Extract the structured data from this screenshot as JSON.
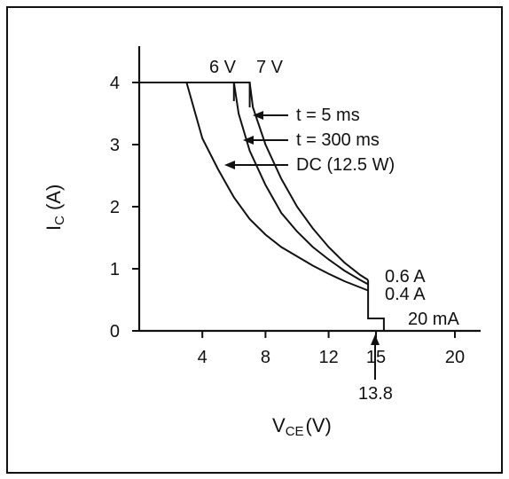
{
  "chart_data": {
    "type": "line",
    "title": "",
    "xlabel": {
      "main": "V",
      "sub": "CE",
      "unit": "(V)"
    },
    "ylabel": {
      "main": "I",
      "sub": "C",
      "unit": "(A)"
    },
    "xlim": [
      0,
      22
    ],
    "ylim": [
      0,
      4.5
    ],
    "x_ticks": [
      4,
      8,
      12,
      15,
      20
    ],
    "y_ticks": [
      0,
      1,
      2,
      3,
      4
    ],
    "grid": false,
    "series": [
      {
        "name": "DC (12.5 W)",
        "x": [
          3.0,
          4.0,
          5.0,
          6.0,
          7.0,
          8.0,
          9.0,
          10.0,
          11.0,
          12.0,
          13.0,
          14.0,
          14.5
        ],
        "y": [
          4.0,
          3.1,
          2.6,
          2.15,
          1.8,
          1.55,
          1.35,
          1.2,
          1.05,
          0.92,
          0.8,
          0.7,
          0.65
        ]
      },
      {
        "name": "t = 300 ms",
        "x": [
          6.0,
          6.3,
          7.0,
          8.0,
          9.0,
          10.0,
          11.0,
          12.0,
          13.0,
          14.0,
          14.5
        ],
        "y": [
          4.0,
          3.5,
          2.9,
          2.35,
          1.9,
          1.6,
          1.35,
          1.15,
          0.97,
          0.82,
          0.75
        ]
      },
      {
        "name": "t = 5 ms",
        "x": [
          7.0,
          7.2,
          8.0,
          9.0,
          10.0,
          11.0,
          12.0,
          13.0,
          14.0,
          14.5
        ],
        "y": [
          4.0,
          3.6,
          3.0,
          2.45,
          2.0,
          1.65,
          1.35,
          1.1,
          0.9,
          0.82
        ]
      }
    ],
    "boundary": {
      "x": [
        0,
        7.0,
        7.0
      ],
      "y": [
        4.0,
        4.0,
        3.6
      ]
    },
    "steps": {
      "x": [
        14.5,
        14.5,
        14.5,
        15.5,
        15.5
      ],
      "y": [
        0.82,
        0.2,
        0.2,
        0.2,
        0.0
      ]
    },
    "annotations": {
      "top_left_label": "6 V",
      "top_right_label": "7 V",
      "arrow_5ms": "t = 5 ms",
      "arrow_300ms": "t = 300 ms",
      "arrow_dc": "DC (12.5 W)",
      "current_06": "0.6 A",
      "current_04": "0.4 A",
      "current_20m": "20 mA",
      "voltage_138": "13.8"
    }
  }
}
